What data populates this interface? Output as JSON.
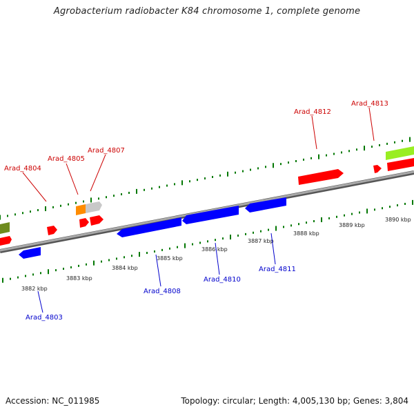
{
  "title": "Agrobacterium radiobacter K84 chromosome 1, complete genome",
  "footer": {
    "accession": "Accession: NC_011985",
    "summary": "Topology: circular; Length: 4,005,130 bp; Genes: 3,804"
  },
  "colors": {
    "forward_gene": "#ff0000",
    "reverse_gene": "#0000ff",
    "forward_label": "#cc0000",
    "reverse_label": "#0000cc",
    "backbone": "#8c8c8c",
    "gc_ticks": "#007700"
  },
  "scale": {
    "ticks": [
      "3882 kbp",
      "3883 kbp",
      "3884 kbp",
      "3885 kbp",
      "3886 kbp",
      "3887 kbp",
      "3888 kbp",
      "3889 kbp",
      "3890 kbp"
    ]
  },
  "genes": {
    "forward": [
      "Arad_4804",
      "Arad_4805",
      "Arad_4807",
      "Arad_4812",
      "Arad_4813"
    ],
    "reverse": [
      "Arad_4803",
      "Arad_4808",
      "Arad_4810",
      "Arad_4811"
    ]
  }
}
